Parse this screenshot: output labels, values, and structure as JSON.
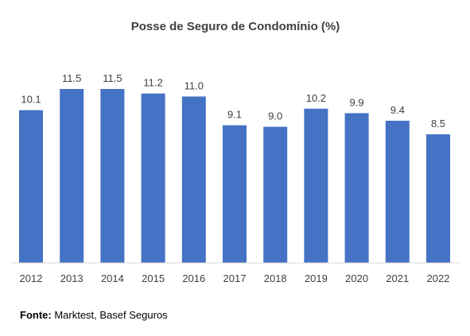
{
  "chart_data": {
    "type": "bar",
    "title": "Posse de Seguro de Condomínio (%)",
    "xlabel": "",
    "ylabel": "",
    "categories": [
      "2012",
      "2013",
      "2014",
      "2015",
      "2016",
      "2017",
      "2018",
      "2019",
      "2020",
      "2021",
      "2022"
    ],
    "values": [
      10.1,
      11.5,
      11.5,
      11.2,
      11.0,
      9.1,
      9.0,
      10.2,
      9.9,
      9.4,
      8.5
    ],
    "value_labels": [
      "10.1",
      "11.5",
      "11.5",
      "11.2",
      "11.0",
      "9.1",
      "9.0",
      "10.2",
      "9.9",
      "9.4",
      "8.5"
    ],
    "ylim": [
      0,
      11.5
    ],
    "grid": false,
    "legend": "none",
    "bar_color": "#4472C4",
    "axis_color": "#D9D9D9",
    "text_color": "#404040",
    "title_color": "#404040"
  },
  "source": {
    "label": "Fonte:",
    "text": " Marktest, Basef Seguros"
  }
}
